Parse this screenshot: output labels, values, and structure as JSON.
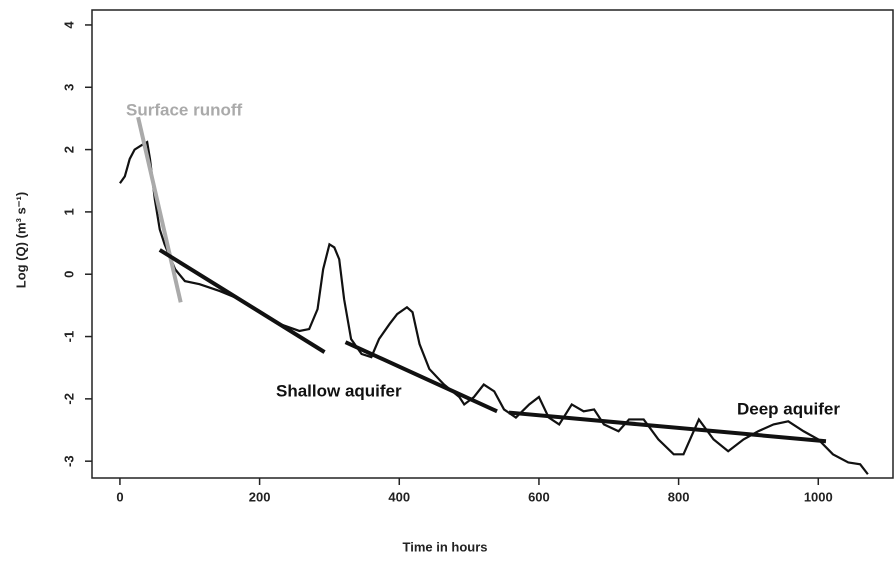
{
  "chart_data": {
    "type": "line",
    "x_label": "Time in hours",
    "y_label": "Log (Q) (m³ s⁻¹)",
    "x": [
      0,
      7,
      14,
      21,
      31,
      39,
      43,
      50,
      57,
      64,
      79,
      93,
      114,
      143,
      171,
      200,
      229,
      257,
      271,
      283,
      291,
      300,
      307,
      314,
      321,
      331,
      346,
      360,
      371,
      386,
      397,
      411,
      419,
      429,
      443,
      464,
      486,
      493,
      507,
      521,
      536,
      550,
      567,
      586,
      600,
      614,
      629,
      647,
      664,
      679,
      693,
      714,
      729,
      750,
      771,
      793,
      807,
      829,
      850,
      871,
      893,
      914,
      936,
      957,
      979,
      1000,
      1021,
      1043,
      1060,
      1071
    ],
    "values": [
      1.46,
      1.57,
      1.85,
      2.0,
      2.07,
      2.12,
      1.85,
      1.2,
      0.72,
      0.48,
      0.08,
      -0.11,
      -0.16,
      -0.27,
      -0.4,
      -0.59,
      -0.8,
      -0.91,
      -0.88,
      -0.56,
      0.08,
      0.48,
      0.43,
      0.24,
      -0.4,
      -1.04,
      -1.28,
      -1.33,
      -1.04,
      -0.8,
      -0.64,
      -0.53,
      -0.61,
      -1.12,
      -1.52,
      -1.77,
      -1.97,
      -2.09,
      -1.97,
      -1.77,
      -1.88,
      -2.17,
      -2.3,
      -2.09,
      -1.97,
      -2.3,
      -2.41,
      -2.09,
      -2.2,
      -2.17,
      -2.41,
      -2.52,
      -2.33,
      -2.33,
      -2.65,
      -2.89,
      -2.89,
      -2.33,
      -2.65,
      -2.84,
      -2.65,
      -2.52,
      -2.41,
      -2.36,
      -2.52,
      -2.65,
      -2.89,
      -3.02,
      -3.05,
      -3.21
    ],
    "color": "#111111",
    "fits": [
      {
        "label": "Surface runoff",
        "x": [
          26,
          87
        ],
        "values": [
          2.52,
          -0.45
        ],
        "color": "#aaaaaa"
      },
      {
        "label": "Shallow aquifer",
        "x": [
          57,
          293
        ],
        "values": [
          0.39,
          -1.25
        ],
        "color": "#111111"
      },
      {
        "x": [
          323,
          540
        ],
        "values": [
          -1.09,
          -2.2
        ],
        "color": "#111111"
      },
      {
        "label": "Deep aquifer",
        "x": [
          557,
          1011
        ],
        "values": [
          -2.22,
          -2.68
        ],
        "color": "#111111"
      }
    ],
    "xlim": [
      -40,
      1107
    ],
    "ylim": [
      -3.27,
      4.24
    ],
    "xticks": [
      0,
      200,
      400,
      600,
      800,
      1000
    ],
    "yticks": [
      -3,
      -2,
      -1,
      0,
      1,
      2,
      3,
      4
    ],
    "grid": false
  }
}
